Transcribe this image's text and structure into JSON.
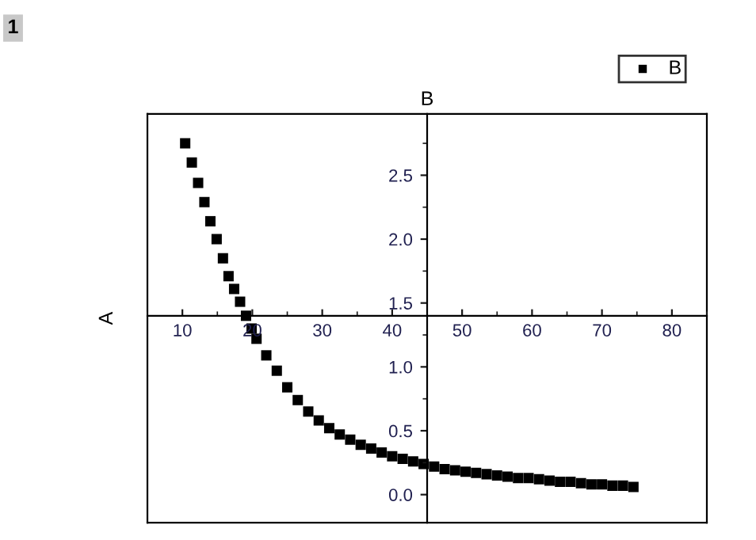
{
  "chart_data": {
    "type": "scatter",
    "xlabel": "B",
    "ylabel": "A",
    "annotations": [
      "1"
    ],
    "xlim": [
      5,
      85
    ],
    "ylim": [
      -0.22,
      2.98
    ],
    "xticks": [
      10,
      20,
      30,
      40,
      50,
      60,
      70,
      80
    ],
    "yticks": [
      {
        "value": 0,
        "label": "0.0"
      },
      0.5,
      {
        "value": 1,
        "label": "1.0"
      },
      1.5,
      {
        "value": 2,
        "label": "2.0"
      },
      2.5
    ],
    "marker": "square",
    "legend": "top right",
    "grid": false,
    "series": [
      {
        "name": "B",
        "color": "#000000",
        "x": [
          10.4,
          11.35,
          12.25,
          13.15,
          14.0,
          14.9,
          15.8,
          16.6,
          17.4,
          18.25,
          19.1,
          19.9,
          20.6,
          22,
          23.5,
          25,
          26.5,
          28,
          29.5,
          31,
          32.5,
          34,
          35.5,
          37,
          38.5,
          40,
          41.5,
          43,
          44.5,
          46,
          47.5,
          49,
          50.5,
          52,
          53.5,
          55,
          56.5,
          58,
          59.5,
          61,
          62.5,
          64,
          65.5,
          67,
          68.5,
          70,
          71.5,
          73,
          74.5
        ],
        "values": [
          2.75,
          2.6,
          2.44,
          2.29,
          2.14,
          2.0,
          1.85,
          1.71,
          1.61,
          1.51,
          1.4,
          1.3,
          1.22,
          1.09,
          0.97,
          0.84,
          0.74,
          0.65,
          0.58,
          0.52,
          0.47,
          0.43,
          0.39,
          0.36,
          0.33,
          0.3,
          0.28,
          0.26,
          0.24,
          0.22,
          0.2,
          0.19,
          0.18,
          0.17,
          0.16,
          0.15,
          0.14,
          0.13,
          0.13,
          0.12,
          0.11,
          0.1,
          0.1,
          0.09,
          0.08,
          0.08,
          0.07,
          0.07,
          0.06
        ]
      }
    ]
  }
}
